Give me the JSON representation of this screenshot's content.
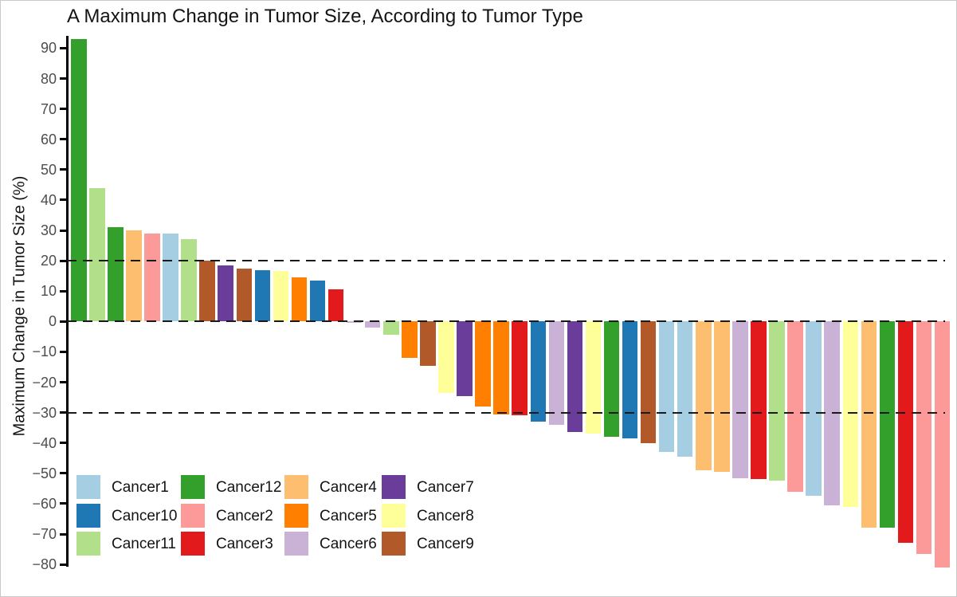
{
  "title": "A Maximum Change in Tumor Size, According to Tumor Type",
  "chart_data": {
    "type": "bar",
    "subtype": "waterfall",
    "title": "A Maximum Change in Tumor Size, According to Tumor Type",
    "xlabel": "",
    "ylabel": "Maximum Change in Tumor Size (%)",
    "ylim": [
      -85,
      95
    ],
    "yticks": [
      90,
      80,
      70,
      60,
      50,
      40,
      30,
      20,
      10,
      0,
      -10,
      -20,
      -30,
      -40,
      -50,
      -60,
      -70,
      -80
    ],
    "reference_lines": [
      20,
      0,
      -30
    ],
    "grid": false,
    "legend_position": "bottom-left",
    "palette": {
      "Cancer1": "#a6cee3",
      "Cancer10": "#1f78b4",
      "Cancer11": "#b2df8a",
      "Cancer12": "#33a02c",
      "Cancer2": "#fb9a99",
      "Cancer3": "#e31a1c",
      "Cancer4": "#fdbf6f",
      "Cancer5": "#ff7f00",
      "Cancer6": "#cab2d6",
      "Cancer7": "#6a3d9a",
      "Cancer8": "#ffff99",
      "Cancer9": "#b15928"
    },
    "legend_order": [
      "Cancer1",
      "Cancer10",
      "Cancer11",
      "Cancer12",
      "Cancer2",
      "Cancer3",
      "Cancer4",
      "Cancer5",
      "Cancer6",
      "Cancer7",
      "Cancer8",
      "Cancer9"
    ],
    "bars": [
      {
        "tumor_type": "Cancer12",
        "value": 93
      },
      {
        "tumor_type": "Cancer11",
        "value": 44
      },
      {
        "tumor_type": "Cancer12",
        "value": 31
      },
      {
        "tumor_type": "Cancer4",
        "value": 30
      },
      {
        "tumor_type": "Cancer2",
        "value": 29
      },
      {
        "tumor_type": "Cancer1",
        "value": 29
      },
      {
        "tumor_type": "Cancer11",
        "value": 27
      },
      {
        "tumor_type": "Cancer9",
        "value": 20
      },
      {
        "tumor_type": "Cancer7",
        "value": 18.5
      },
      {
        "tumor_type": "Cancer9",
        "value": 17.5
      },
      {
        "tumor_type": "Cancer10",
        "value": 17
      },
      {
        "tumor_type": "Cancer8",
        "value": 16.5
      },
      {
        "tumor_type": "Cancer5",
        "value": 14.5
      },
      {
        "tumor_type": "Cancer10",
        "value": 13.5
      },
      {
        "tumor_type": "Cancer3",
        "value": 10.5
      },
      {
        "tumor_type": "Cancer6",
        "value": -0.5
      },
      {
        "tumor_type": "Cancer6",
        "value": -2
      },
      {
        "tumor_type": "Cancer11",
        "value": -4.5
      },
      {
        "tumor_type": "Cancer5",
        "value": -12
      },
      {
        "tumor_type": "Cancer9",
        "value": -14.5
      },
      {
        "tumor_type": "Cancer8",
        "value": -23.5
      },
      {
        "tumor_type": "Cancer7",
        "value": -24.5
      },
      {
        "tumor_type": "Cancer5",
        "value": -28
      },
      {
        "tumor_type": "Cancer5",
        "value": -30.5
      },
      {
        "tumor_type": "Cancer3",
        "value": -31
      },
      {
        "tumor_type": "Cancer10",
        "value": -33
      },
      {
        "tumor_type": "Cancer6",
        "value": -34
      },
      {
        "tumor_type": "Cancer7",
        "value": -36.5
      },
      {
        "tumor_type": "Cancer8",
        "value": -37
      },
      {
        "tumor_type": "Cancer12",
        "value": -38
      },
      {
        "tumor_type": "Cancer10",
        "value": -38.5
      },
      {
        "tumor_type": "Cancer9",
        "value": -40
      },
      {
        "tumor_type": "Cancer1",
        "value": -43
      },
      {
        "tumor_type": "Cancer1",
        "value": -44.5
      },
      {
        "tumor_type": "Cancer4",
        "value": -49
      },
      {
        "tumor_type": "Cancer4",
        "value": -49.5
      },
      {
        "tumor_type": "Cancer6",
        "value": -51.5
      },
      {
        "tumor_type": "Cancer3",
        "value": -52
      },
      {
        "tumor_type": "Cancer11",
        "value": -52.5
      },
      {
        "tumor_type": "Cancer2",
        "value": -56
      },
      {
        "tumor_type": "Cancer1",
        "value": -57.5
      },
      {
        "tumor_type": "Cancer6",
        "value": -60.5
      },
      {
        "tumor_type": "Cancer8",
        "value": -61
      },
      {
        "tumor_type": "Cancer4",
        "value": -68
      },
      {
        "tumor_type": "Cancer12",
        "value": -68
      },
      {
        "tumor_type": "Cancer3",
        "value": -73
      },
      {
        "tumor_type": "Cancer2",
        "value": -76.5
      },
      {
        "tumor_type": "Cancer2",
        "value": -81
      }
    ]
  }
}
